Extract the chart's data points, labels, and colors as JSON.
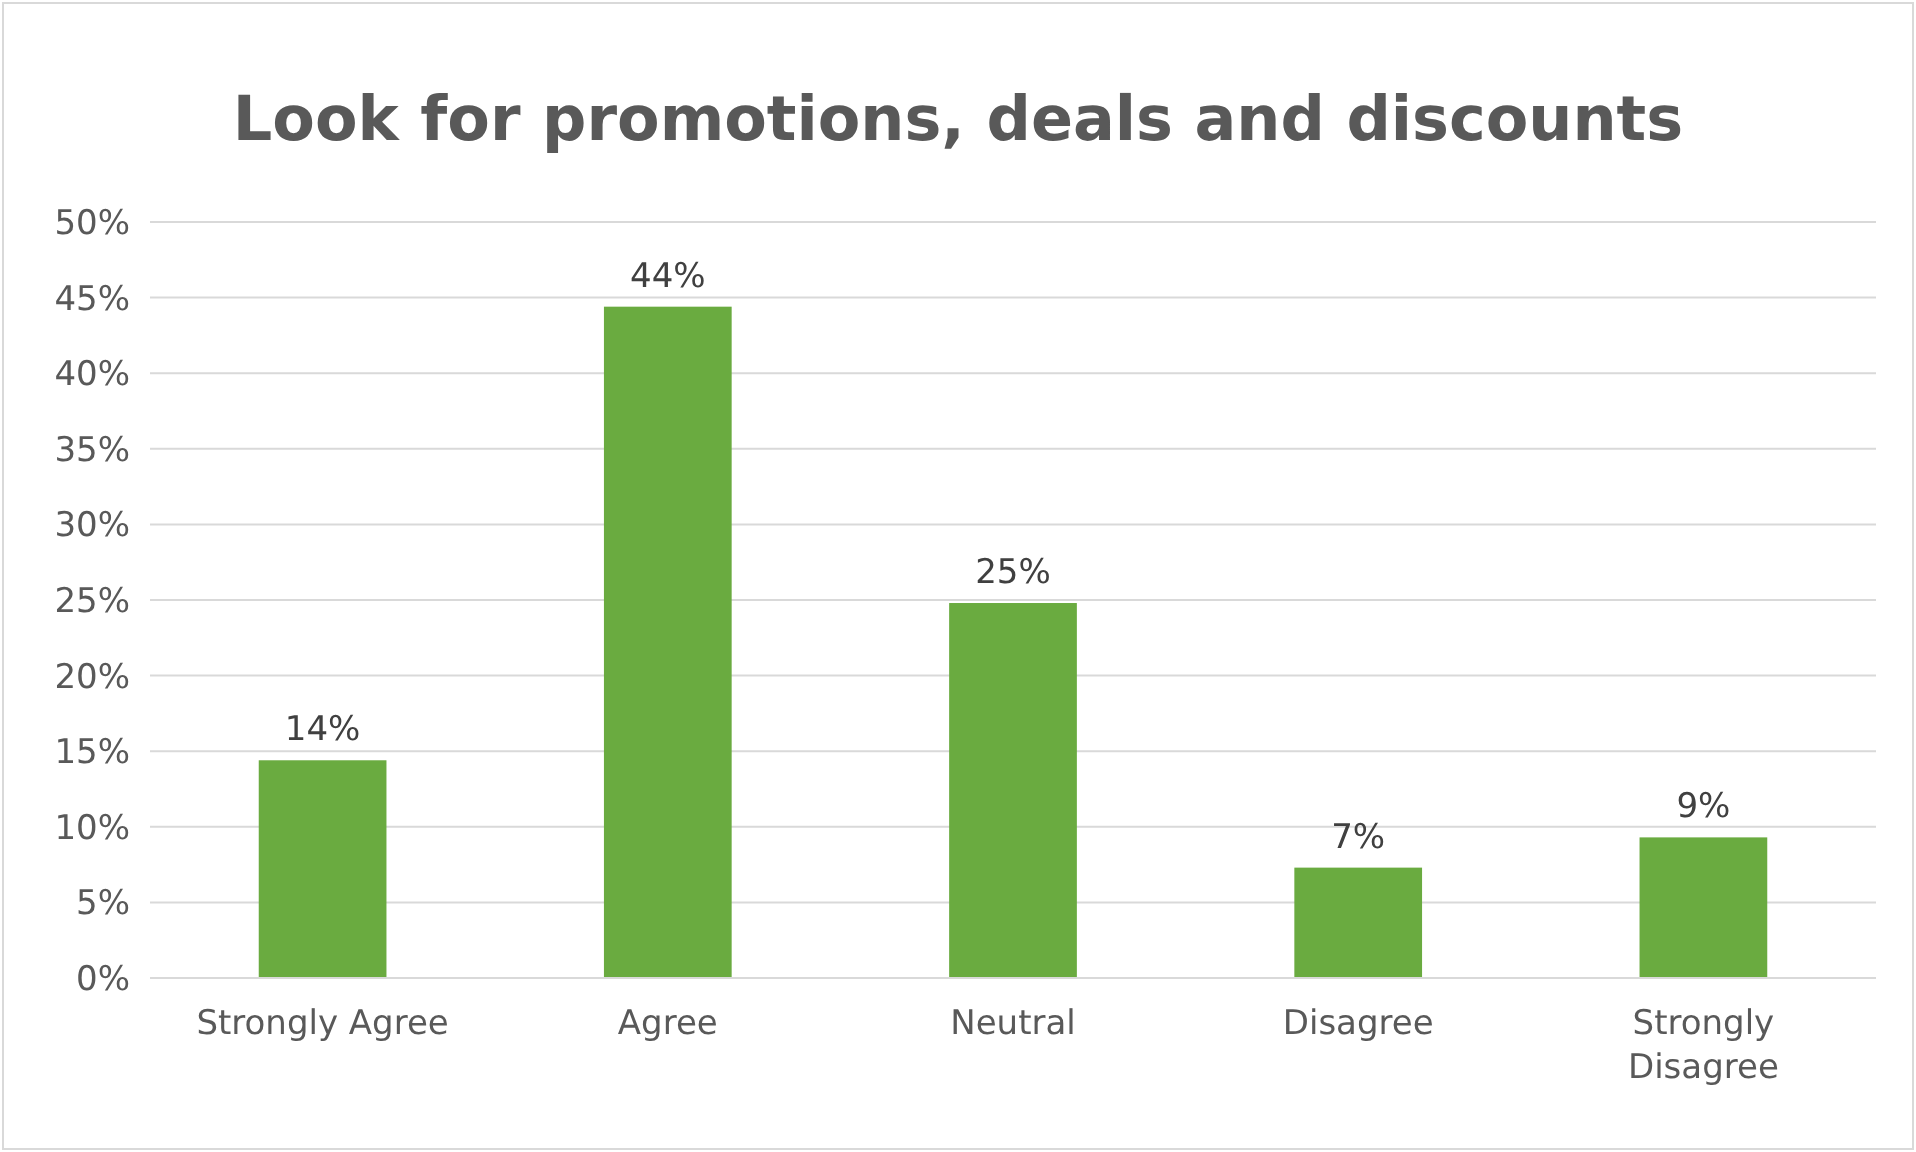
{
  "chart_data": {
    "type": "bar",
    "title": "Look for promotions, deals and discounts",
    "categories": [
      "Strongly Agree",
      "Agree",
      "Neutral",
      "Disagree",
      "Strongly Disagree"
    ],
    "values": [
      14.4,
      44.4,
      24.8,
      7.3,
      9.3
    ],
    "value_labels": [
      "14%",
      "44%",
      "25%",
      "7%",
      "9%"
    ],
    "color": "#6aab40",
    "ylim": [
      0,
      50
    ],
    "yticks": [
      {
        "value": 0,
        "label": "0%"
      },
      {
        "value": 5,
        "label": "5%"
      },
      {
        "value": 10,
        "label": "10%"
      },
      {
        "value": 15,
        "label": "15%"
      },
      {
        "value": 20,
        "label": "20%"
      },
      {
        "value": 25,
        "label": "25%"
      },
      {
        "value": 30,
        "label": "30%"
      },
      {
        "value": 35,
        "label": "35%"
      },
      {
        "value": 40,
        "label": "40%"
      },
      {
        "value": 45,
        "label": "45%"
      },
      {
        "value": 50,
        "label": "50%"
      }
    ],
    "grid": "y"
  }
}
